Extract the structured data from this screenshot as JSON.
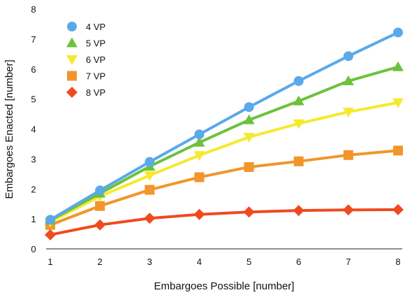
{
  "chart_data": {
    "type": "line",
    "title": "",
    "xlabel": "Embargoes Possible [number]",
    "ylabel": "Embargoes Enacted [number]",
    "x": [
      1,
      2,
      3,
      4,
      5,
      6,
      7,
      8
    ],
    "xlim": [
      1,
      8
    ],
    "ylim": [
      0,
      8
    ],
    "xticks": [
      "1",
      "2",
      "3",
      "4",
      "5",
      "6",
      "7",
      "8"
    ],
    "yticks": [
      "0",
      "1",
      "2",
      "3",
      "4",
      "5",
      "6",
      "7",
      "8"
    ],
    "grid": false,
    "legend_position": "top-left",
    "series": [
      {
        "name": "4 VP",
        "color": "#5aa9ea",
        "marker": "circle",
        "values": [
          0.97,
          1.95,
          2.9,
          3.82,
          4.73,
          5.6,
          6.43,
          7.22
        ]
      },
      {
        "name": "5 VP",
        "color": "#6cc23a",
        "marker": "triangle-up",
        "values": [
          0.95,
          1.85,
          2.75,
          3.55,
          4.3,
          4.93,
          5.6,
          6.07
        ]
      },
      {
        "name": "6 VP",
        "color": "#f5ea2e",
        "marker": "triangle-down",
        "values": [
          0.9,
          1.75,
          2.45,
          3.12,
          3.73,
          4.18,
          4.57,
          4.88
        ]
      },
      {
        "name": "7 VP",
        "color": "#f2952b",
        "marker": "square",
        "values": [
          0.8,
          1.43,
          1.97,
          2.39,
          2.73,
          2.92,
          3.13,
          3.28
        ]
      },
      {
        "name": "8 VP",
        "color": "#f04a1f",
        "marker": "diamond",
        "values": [
          0.47,
          0.8,
          1.02,
          1.15,
          1.23,
          1.28,
          1.3,
          1.31
        ]
      }
    ]
  }
}
